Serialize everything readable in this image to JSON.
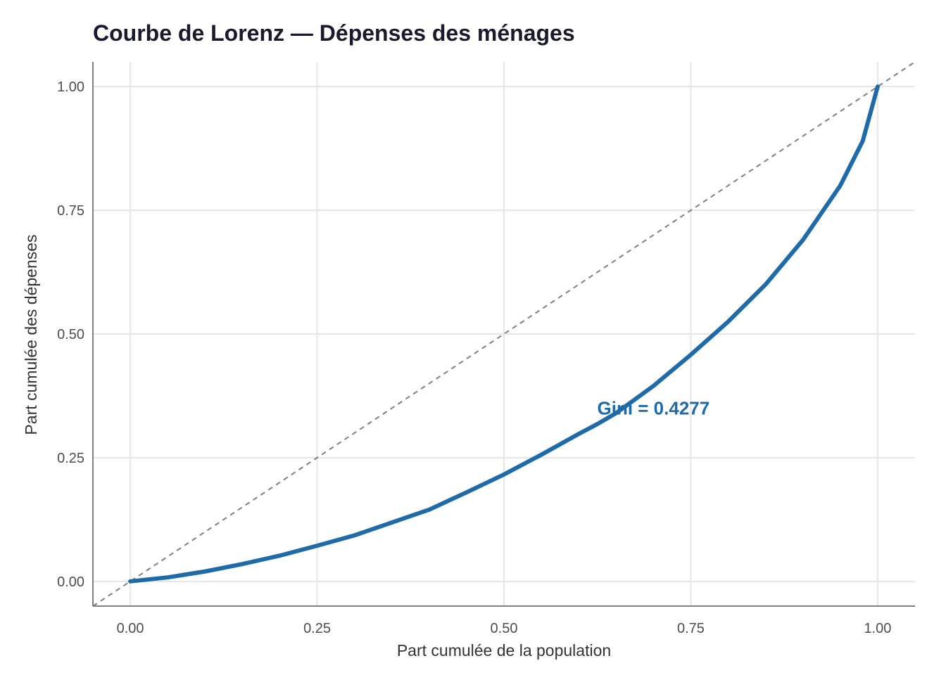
{
  "chart_data": {
    "type": "line",
    "title": "Courbe de Lorenz — Dépenses des ménages",
    "xlabel": "Part cumulée de la population",
    "ylabel": "Part cumulée des dépenses",
    "xlim": [
      -0.05,
      1.05
    ],
    "ylim": [
      -0.05,
      1.05
    ],
    "xticks": [
      0,
      0.25,
      0.5,
      0.75,
      1
    ],
    "xtick_labels": [
      "0.00",
      "0.25",
      "0.50",
      "0.75",
      "1.00"
    ],
    "yticks": [
      0,
      0.25,
      0.5,
      0.75,
      1
    ],
    "ytick_labels": [
      "0.00",
      "0.25",
      "0.50",
      "0.75",
      "1.00"
    ],
    "grid": true,
    "series": [
      {
        "color": "#1f6aa8",
        "x": [
          0,
          0.05,
          0.1,
          0.15,
          0.2,
          0.25,
          0.3,
          0.375,
          0.4,
          0.45,
          0.5,
          0.55,
          0.6,
          0.625,
          0.65,
          0.7,
          0.75,
          0.8,
          0.85,
          0.9,
          0.95,
          0.98,
          1
        ],
        "y": [
          0,
          0.008,
          0.02,
          0.035,
          0.052,
          0.072,
          0.093,
          0.132,
          0.145,
          0.18,
          0.216,
          0.256,
          0.298,
          0.318,
          0.34,
          0.395,
          0.458,
          0.525,
          0.6,
          0.69,
          0.8,
          0.89,
          1
        ]
      }
    ],
    "reference_line": {
      "style": "dashed",
      "color": "#808080",
      "x": [
        -0.05,
        1.05
      ],
      "y": [
        -0.05,
        1.05
      ]
    },
    "annotation": {
      "text": "Gini = 0.4277",
      "x": 0.7,
      "y": 0.35,
      "color": "#1f6aa8"
    }
  }
}
